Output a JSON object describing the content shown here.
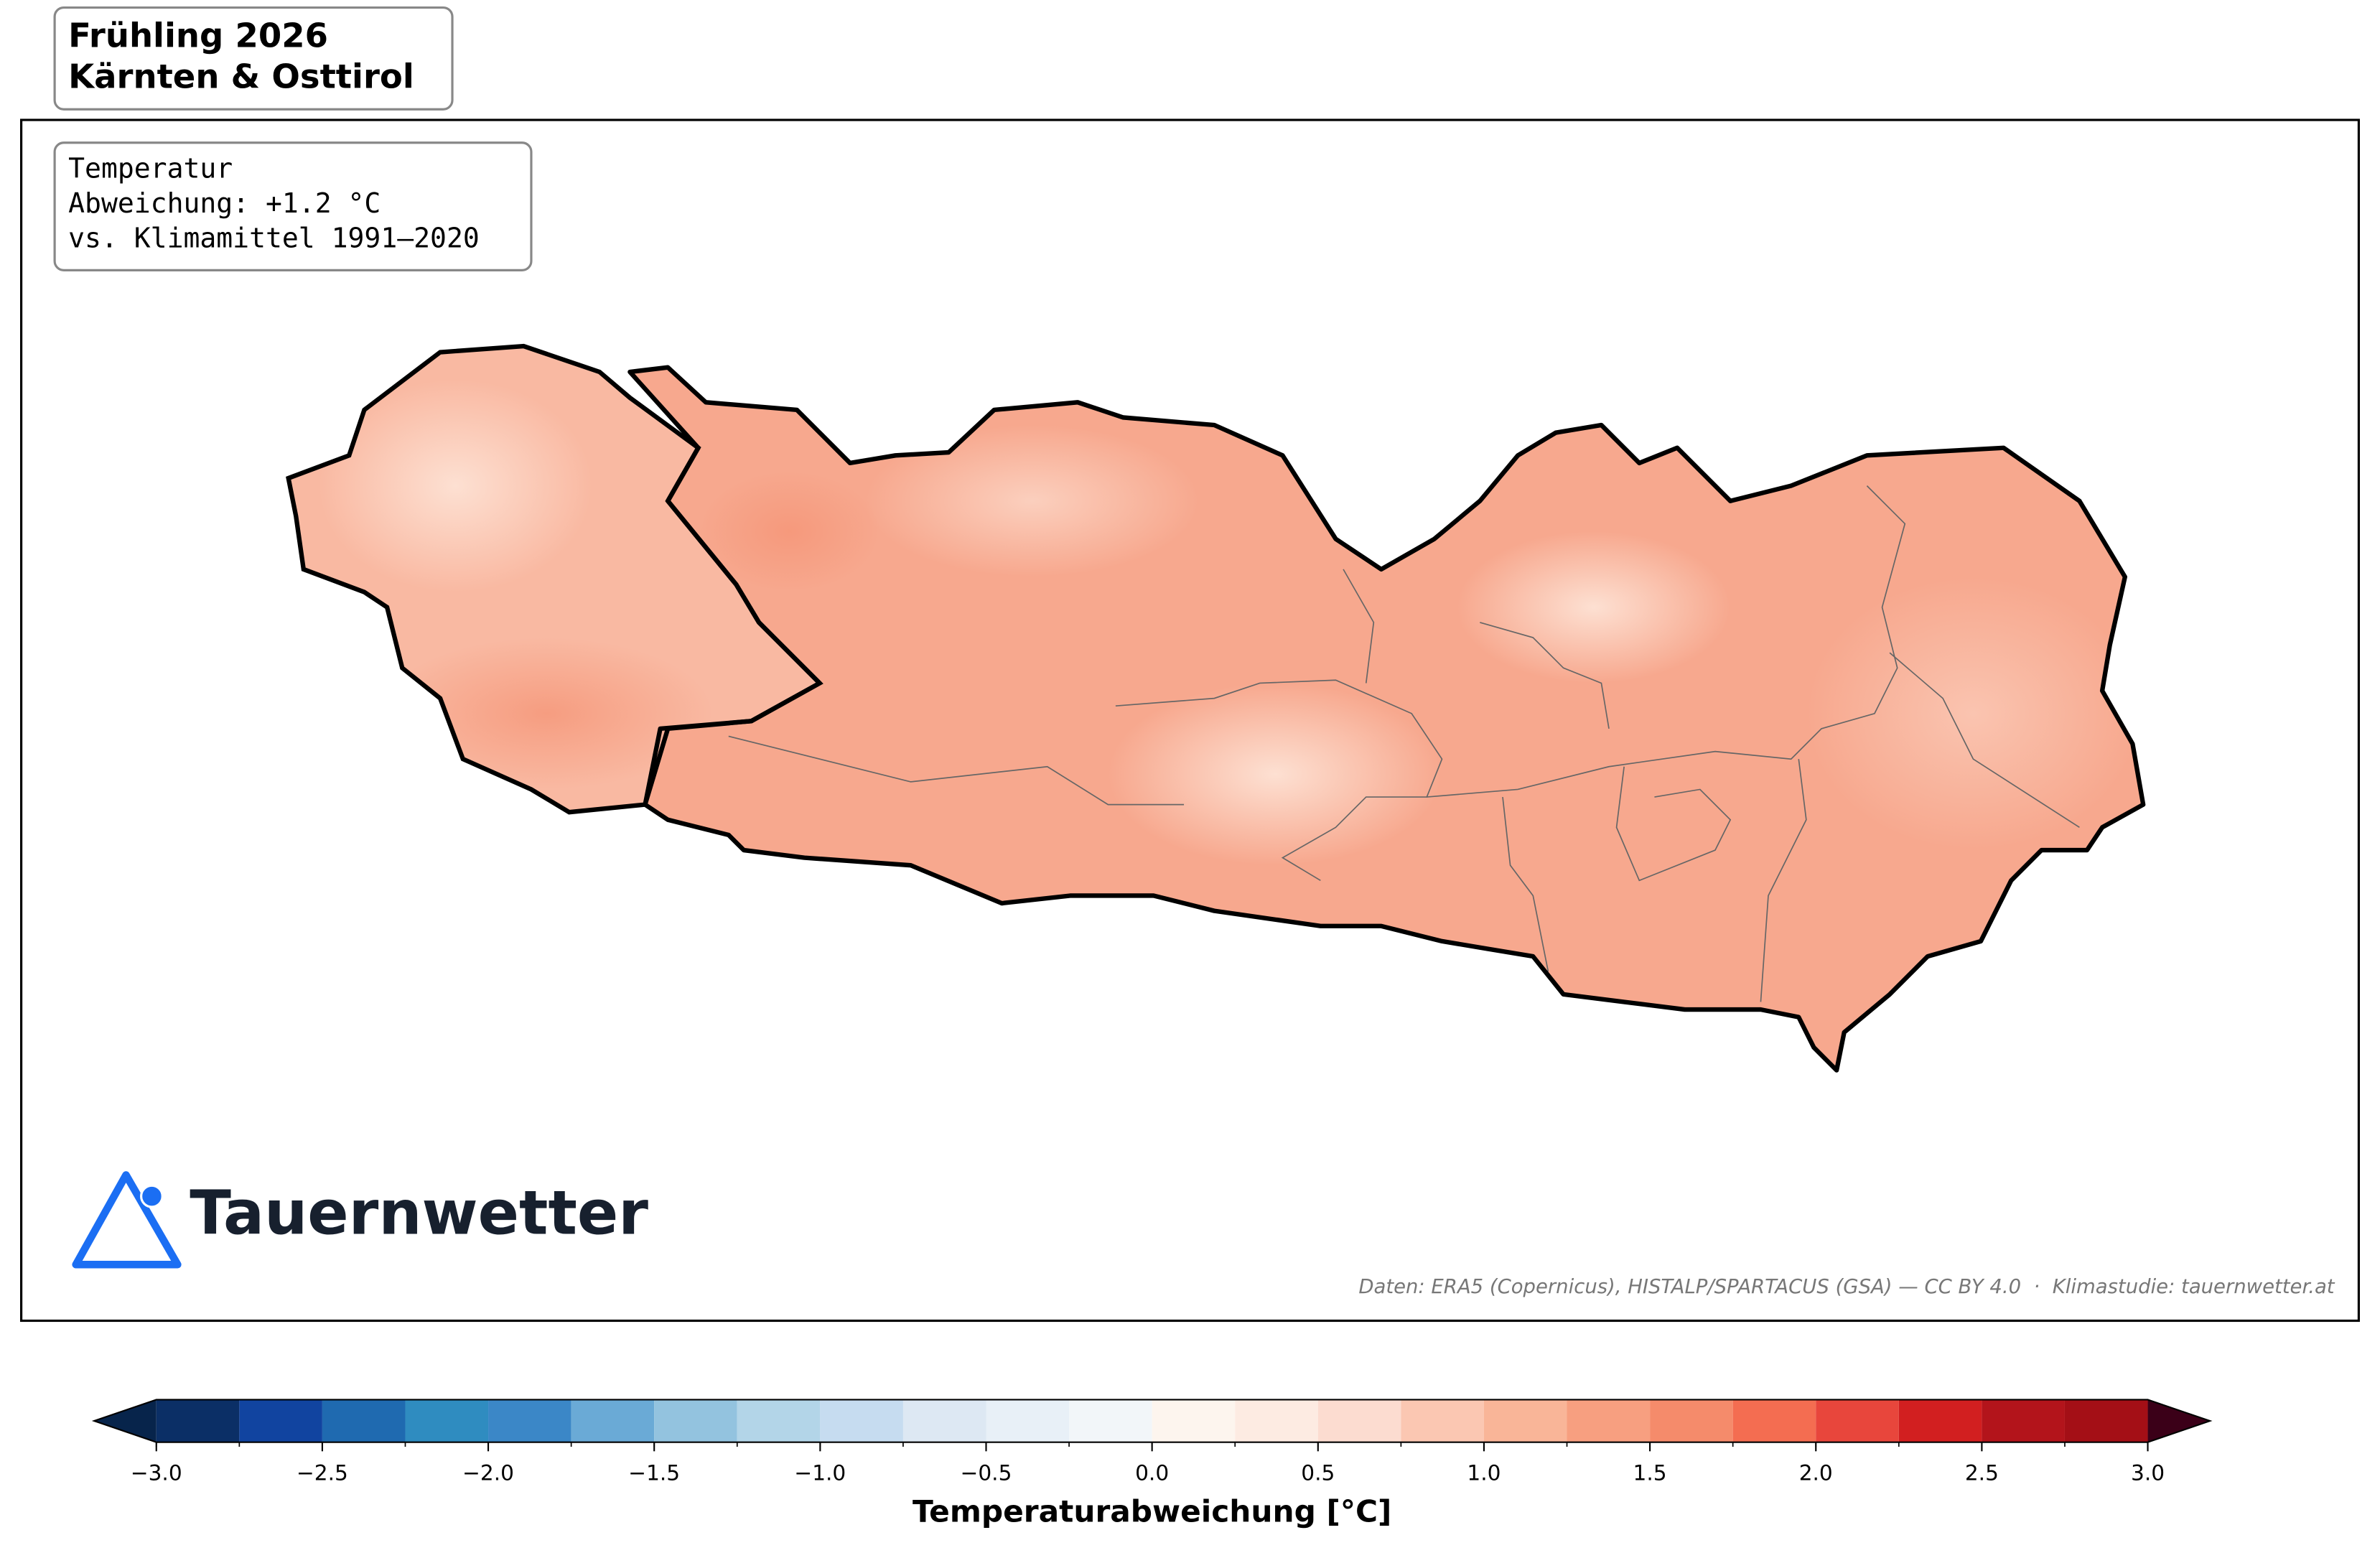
{
  "header": {
    "lines": [
      "Frühling 2026",
      "Kärnten & Osttirol"
    ]
  },
  "info_box": {
    "lines": [
      "Temperatur",
      "Abweichung: +1.2 °C",
      "vs. Klimamittel 1991–2020"
    ]
  },
  "logo": {
    "text": "Tauernwetter"
  },
  "credit": "Daten: ERA5 (Copernicus), HISTALP/SPARTACUS (GSA) — CC BY 4.0  ·  Klimastudie: tauernwetter.at",
  "colorbar": {
    "label": "Temperaturabweichung [°C]",
    "lim": [
      -3,
      3
    ],
    "ticks": [
      {
        "value": -3,
        "label": "−3.0"
      },
      {
        "value": -2.5,
        "label": "−2.5"
      },
      {
        "value": -2,
        "label": "−2.0"
      },
      {
        "value": -1.5,
        "label": "−1.5"
      },
      {
        "value": -1,
        "label": "−1.0"
      },
      {
        "value": -0.5,
        "label": "−0.5"
      },
      {
        "value": 0,
        "label": "0.0"
      },
      0.5,
      {
        "value": 1,
        "label": "1.0"
      },
      1.5,
      {
        "value": 2,
        "label": "2.0"
      },
      2.5,
      {
        "value": 3,
        "label": "3.0"
      }
    ],
    "levels": [
      -3,
      -2.75,
      -2.5,
      -2.25,
      -2,
      -1.75,
      -1.5,
      -1.25,
      -1,
      -0.75,
      -0.5,
      -0.25,
      0,
      0.25,
      0.5,
      0.75,
      1,
      1.25,
      1.5,
      1.75,
      2,
      2.25,
      2.5,
      2.75,
      3
    ],
    "colors": [
      "#0b2f66",
      "#1144a0",
      "#1f6ab0",
      "#2f8cc0",
      "#3b87c7",
      "#6aaad6",
      "#93c3df",
      "#b3d5e8",
      "#c6dcf0",
      "#dde8f3",
      "#e8f0f7",
      "#f2f6f9",
      "#fdf5ee",
      "#fdebe2",
      "#fcdcd0",
      "#fbc7b2",
      "#f9b598",
      "#f79f80",
      "#f58b6b",
      "#f46d51",
      "#e8463c",
      "#d21f20",
      "#b3141b",
      "#a40f16"
    ],
    "under_color": "#07244b",
    "over_color": "#3b0018"
  }
}
